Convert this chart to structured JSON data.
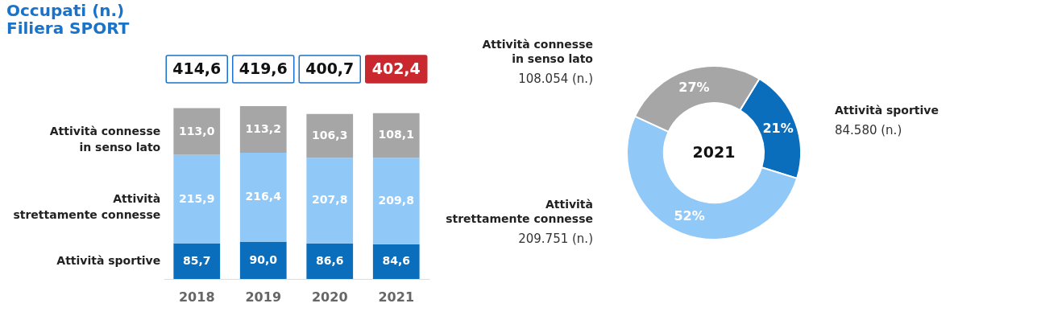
{
  "chart_data": [
    {
      "type": "bar",
      "stacked": true,
      "title": "Occupati (n.)",
      "subtitle": "Filiera SPORT",
      "categories": [
        "2018",
        "2019",
        "2020",
        "2021"
      ],
      "series": [
        {
          "name": "Attività sportive",
          "color": "#0a6ebd",
          "values": [
            85.7,
            90.0,
            86.6,
            84.6
          ],
          "value_labels": [
            "85,7",
            "90,0",
            "86,6",
            "84,6"
          ]
        },
        {
          "name": "Attività strettamente connesse",
          "color": "#90c8f8",
          "values": [
            215.9,
            216.4,
            207.8,
            209.8
          ],
          "value_labels": [
            "215,9",
            "216,4",
            "207,8",
            "209,8"
          ]
        },
        {
          "name": "Attività connesse in senso lato",
          "color": "#a6a6a6",
          "values": [
            113.0,
            113.2,
            106.3,
            108.1
          ],
          "value_labels": [
            "113,0",
            "113,2",
            "106,3",
            "108,1"
          ]
        }
      ],
      "totals": [
        "414,6",
        "419,6",
        "400,7",
        "402,4"
      ]
    },
    {
      "type": "donut",
      "title": "2021",
      "categories": [
        "Attività sportive",
        "Attività strettamente connesse",
        "Attività connesse in senso lato"
      ],
      "values": [
        84580,
        209751,
        108054
      ],
      "colors": [
        "#0a6ebd",
        "#90c8f8",
        "#a6a6a6"
      ],
      "value_labels": [
        "84.580 (n.)",
        "209.751 (n.)",
        "108.054 (n.)"
      ],
      "annotations": [
        "21%",
        "52%",
        "27%"
      ]
    }
  ]
}
